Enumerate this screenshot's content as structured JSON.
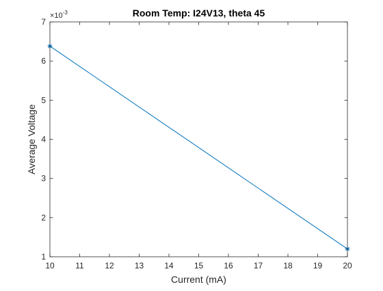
{
  "chart_data": {
    "type": "line",
    "title": "Room Temp: I24V13, theta 45",
    "xlabel": "Current (mA)",
    "ylabel": "Average Voltage",
    "y_exponent_label": "×10",
    "y_exponent_power": "-3",
    "xlim": [
      10,
      20
    ],
    "ylim": [
      1,
      7
    ],
    "x_ticks": [
      10,
      11,
      12,
      13,
      14,
      15,
      16,
      17,
      18,
      19,
      20
    ],
    "y_ticks": [
      1,
      2,
      3,
      4,
      5,
      6,
      7
    ],
    "grid": false,
    "series": [
      {
        "x": [
          10,
          20
        ],
        "values": [
          6.38,
          1.2
        ],
        "color": "#0072bd",
        "marker": "asterisk"
      }
    ]
  }
}
